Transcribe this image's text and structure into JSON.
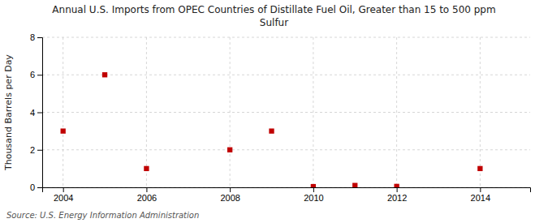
{
  "chart_data": {
    "type": "scatter",
    "title": "Annual U.S. Imports from OPEC Countries of Distillate Fuel Oil, Greater than 15 to 500 ppm\nSulfur",
    "ylabel": "Thousand Barrels per Day",
    "annotations": [
      "Source: U.S. Energy Information Administration"
    ],
    "x": [
      2004,
      2005,
      2006,
      2008,
      2009,
      2010,
      2011,
      2012,
      2014
    ],
    "values": [
      3,
      6,
      1,
      2,
      3,
      0.04,
      0.1,
      0.05,
      1
    ],
    "color": "#c00000",
    "marker": "square",
    "xlim": [
      2003.5,
      2015.2
    ],
    "ylim": [
      0,
      8
    ],
    "xticks": [
      2004,
      2006,
      2008,
      2010,
      2012,
      2014
    ],
    "yticks": [
      0,
      2,
      4,
      6,
      8
    ],
    "grid": true
  }
}
